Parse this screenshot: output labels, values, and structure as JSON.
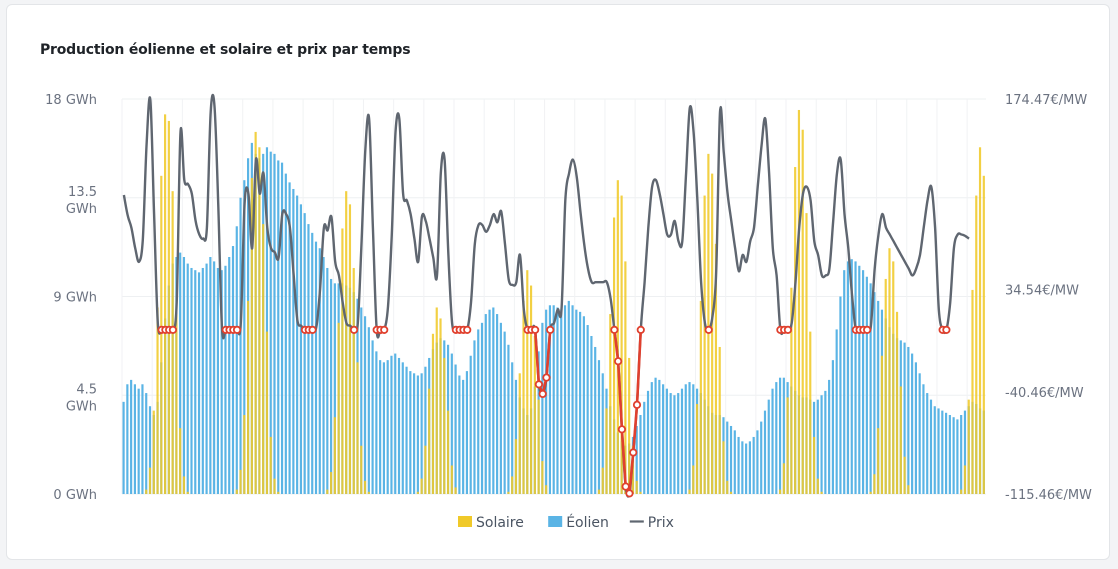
{
  "chart_data": {
    "type": "bar",
    "title": "Production éolienne et solaire et prix par temps",
    "y_left_ticks": [
      "18 GWh",
      "13.5 GWh",
      "9 GWh",
      "4.5 GWh",
      "0 GWh"
    ],
    "y_left_ticks_lines": [
      [
        "18 GWh"
      ],
      [
        "13.5",
        "GWh"
      ],
      [
        "9 GWh"
      ],
      [
        "4.5",
        "GWh"
      ],
      [
        "0 GWh"
      ]
    ],
    "y_right_ticks": [
      "174.47€/MW",
      "34.54€/MW",
      "-40.46€/MW",
      "-115.46€/MW"
    ],
    "ylim_left": [
      0,
      18
    ],
    "ylim_right": [
      -115.46,
      174.47
    ],
    "negative_price_threshold": 0,
    "legend": [
      {
        "name": "Solaire",
        "color": "#f0c929",
        "kind": "bar"
      },
      {
        "name": "Éolien",
        "color": "#5ab4e5",
        "kind": "bar"
      },
      {
        "name": "Prix",
        "color": "#5f6670",
        "kind": "line"
      }
    ],
    "negative_price_color": "#e0402e",
    "series": [
      {
        "name": "Solaire",
        "values": [
          0,
          0,
          0,
          0,
          0,
          0,
          0.2,
          1.2,
          3.8,
          8.5,
          14.5,
          17.3,
          17,
          13.8,
          8.2,
          3,
          0.8,
          0.1,
          0,
          0,
          0,
          0,
          0,
          0,
          0,
          0,
          0,
          0,
          0,
          0,
          0.2,
          1.1,
          3.6,
          8.8,
          14.4,
          16.5,
          15.8,
          12.3,
          7.4,
          2.6,
          0.7,
          0.1,
          0,
          0,
          0,
          0,
          0,
          0,
          0,
          0,
          0,
          0,
          0,
          0,
          0.2,
          1,
          3.5,
          7.8,
          12.1,
          13.8,
          13.2,
          10.3,
          6,
          2.2,
          0.6,
          0.1,
          0,
          0,
          0,
          0,
          0,
          0,
          0,
          0,
          0,
          0,
          0,
          0,
          0.1,
          0.7,
          2.2,
          4.8,
          7.3,
          8.5,
          8,
          6.2,
          3.8,
          1.3,
          0.3,
          0,
          0,
          0,
          0,
          0,
          0,
          0,
          0,
          0,
          0,
          0,
          0,
          0,
          0.1,
          0.8,
          2.5,
          5.5,
          8.8,
          10.2,
          9.5,
          7.2,
          4.3,
          1.5,
          0.4,
          0,
          0,
          0,
          0,
          0,
          0,
          0,
          0,
          0,
          0,
          0,
          0,
          0,
          0.2,
          1.2,
          3.9,
          8.2,
          12.6,
          14.3,
          13.6,
          10.6,
          6.2,
          2.2,
          0.6,
          0.1,
          0,
          0,
          0,
          0,
          0,
          0,
          0,
          0,
          0,
          0,
          0,
          0,
          0.2,
          1.3,
          4.1,
          8.8,
          13.6,
          15.5,
          14.6,
          11.4,
          6.7,
          2.4,
          0.6,
          0.1,
          0,
          0,
          0,
          0,
          0,
          0,
          0,
          0,
          0,
          0,
          0,
          0,
          0.2,
          1.4,
          4.4,
          9.4,
          14.9,
          17.5,
          16.6,
          12.8,
          7.4,
          2.6,
          0.7,
          0.1,
          0,
          0,
          0,
          0,
          0,
          0,
          0,
          0,
          0,
          0,
          0,
          0,
          0.1,
          0.9,
          3,
          6.3,
          9.8,
          11.2,
          10.6,
          8.3,
          4.9,
          1.7,
          0.4,
          0,
          0,
          0,
          0,
          0,
          0,
          0,
          0,
          0,
          0,
          0,
          0,
          0,
          0.2,
          1.3,
          4.3,
          9.3,
          13.6,
          15.8,
          14.5
        ]
      },
      {
        "name": "Éolien",
        "values": [
          4.2,
          5,
          5.2,
          5,
          4.8,
          5,
          4.6,
          4,
          3.6,
          4.2,
          6,
          8,
          9.5,
          10.5,
          10.8,
          11,
          10.8,
          10.5,
          10.3,
          10.2,
          10.1,
          10.3,
          10.5,
          10.8,
          10.6,
          10.3,
          10.2,
          10.4,
          10.8,
          11.3,
          12.2,
          13.5,
          14.3,
          15.3,
          16,
          15.5,
          15.3,
          15.5,
          15.8,
          15.6,
          15.5,
          15.2,
          15.1,
          14.6,
          14.2,
          13.9,
          13.6,
          13.2,
          12.8,
          12.3,
          11.9,
          11.5,
          11.2,
          10.8,
          10.3,
          9.8,
          9.6,
          9.6,
          9.6,
          9.5,
          9.4,
          9.2,
          8.9,
          8.5,
          8.1,
          7.6,
          7,
          6.5,
          6.1,
          6,
          6.1,
          6.3,
          6.4,
          6.2,
          6,
          5.8,
          5.6,
          5.5,
          5.4,
          5.5,
          5.8,
          6.2,
          6.6,
          6.9,
          7.1,
          7,
          6.8,
          6.4,
          5.9,
          5.4,
          5.2,
          5.6,
          6.3,
          7,
          7.5,
          7.8,
          8.2,
          8.4,
          8.5,
          8.2,
          7.8,
          7.4,
          6.8,
          6,
          5.2,
          4.4,
          3.9,
          3.6,
          3.9,
          4.9,
          6.5,
          7.8,
          8.4,
          8.6,
          8.6,
          8.5,
          8.4,
          8.6,
          8.8,
          8.6,
          8.4,
          8.3,
          8.1,
          7.7,
          7.2,
          6.7,
          6.1,
          5.5,
          4.8,
          4,
          3.4,
          2.8,
          2.4,
          2.2,
          2.3,
          2.6,
          3.1,
          3.6,
          4.2,
          4.7,
          5.1,
          5.3,
          5.2,
          5,
          4.8,
          4.6,
          4.5,
          4.6,
          4.8,
          5,
          5.1,
          5,
          4.8,
          4.6,
          4.3,
          4,
          3.7,
          3.6,
          3.6,
          3.5,
          3.3,
          3.1,
          2.9,
          2.6,
          2.4,
          2.3,
          2.4,
          2.6,
          2.9,
          3.3,
          3.8,
          4.3,
          4.8,
          5.1,
          5.3,
          5.3,
          5.1,
          4.9,
          4.7,
          4.5,
          4.4,
          4.4,
          4.3,
          4.2,
          4.3,
          4.5,
          4.7,
          5.2,
          6.1,
          7.5,
          9,
          10.2,
          10.6,
          10.7,
          10.6,
          10.4,
          10.2,
          9.9,
          9.6,
          9.2,
          8.8,
          8.4,
          8,
          7.6,
          7.3,
          7.1,
          7,
          6.9,
          6.7,
          6.4,
          6,
          5.5,
          5,
          4.6,
          4.3,
          4,
          3.9,
          3.8,
          3.7,
          3.6,
          3.5,
          3.4,
          3.6,
          3.8,
          4,
          4.2,
          4.1,
          3.9,
          3.8
        ]
      },
      {
        "name": "Prix",
        "values": [
          104,
          89,
          80,
          65,
          55,
          71,
          140,
          174,
          90,
          10,
          5,
          5,
          5,
          5,
          25,
          150,
          115,
          112,
          105,
          85,
          75,
          72,
          80,
          165,
          170,
          98,
          6,
          5,
          5,
          5,
          5,
          10,
          98,
          105,
          65,
          130,
          105,
          120,
          80,
          65,
          62,
          58,
          90,
          90,
          80,
          45,
          12,
          8,
          5,
          5,
          5,
          7,
          35,
          80,
          78,
          88,
          55,
          45,
          25,
          10,
          8,
          5,
          10,
          70,
          138,
          160,
          80,
          5,
          5,
          5,
          22,
          75,
          150,
          160,
          105,
          100,
          90,
          72,
          55,
          88,
          85,
          72,
          58,
          45,
          120,
          130,
          60,
          10,
          5,
          5,
          5,
          5,
          25,
          68,
          82,
          82,
          77,
          82,
          90,
          84,
          92,
          68,
          42,
          38,
          40,
          60,
          20,
          5,
          5,
          5,
          -35,
          -42,
          -30,
          5,
          10,
          20,
          20,
          100,
          120,
          130,
          118,
          92,
          68,
          50,
          40,
          40,
          40,
          40,
          40,
          28,
          5,
          -18,
          -68,
          -110,
          -115,
          -85,
          -50,
          5,
          40,
          80,
          110,
          115,
          105,
          90,
          75,
          75,
          85,
          70,
          70,
          120,
          168,
          150,
          100,
          40,
          10,
          5,
          15,
          48,
          165,
          135,
          105,
          85,
          65,
          48,
          60,
          55,
          70,
          80,
          110,
          140,
          160,
          120,
          65,
          45,
          5,
          5,
          5,
          10,
          40,
          80,
          105,
          110,
          100,
          70,
          60,
          45,
          45,
          50,
          85,
          120,
          130,
          90,
          65,
          30,
          5,
          5,
          5,
          5,
          8,
          50,
          75,
          90,
          80,
          75,
          70,
          65,
          60,
          55,
          50,
          45,
          50,
          60,
          80,
          100,
          110,
          80,
          20,
          5,
          5,
          25,
          65,
          75,
          75,
          74,
          72
        ]
      }
    ]
  }
}
